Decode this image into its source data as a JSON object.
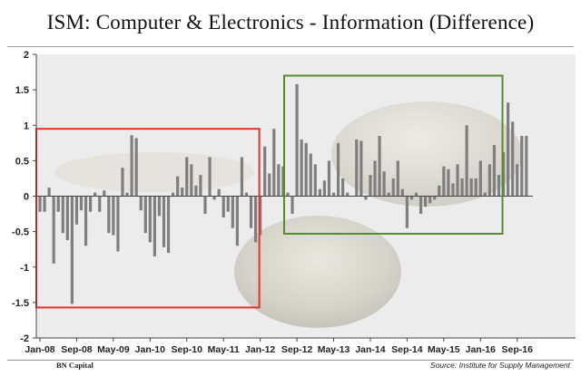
{
  "header": {
    "title": "ISM: Computer & Electronics - Information (Difference)"
  },
  "footer": {
    "left": "BN Capital",
    "right": "Source: Institute for Supply Management"
  },
  "chart_data": {
    "type": "bar",
    "title": "ISM: Computer & Electronics - Information (Difference)",
    "xlabel": "",
    "ylabel": "",
    "ylim": [
      -2,
      2
    ],
    "yticks": [
      2,
      1.5,
      1,
      0.5,
      0,
      -0.5,
      -1,
      -1.5,
      -2
    ],
    "xtick_labels": [
      "Jan-08",
      "Sep-08",
      "May-09",
      "Jan-10",
      "Sep-10",
      "May-11",
      "Jan-12",
      "Sep-12",
      "May-13",
      "Jan-14",
      "Sep-14",
      "May-15",
      "Jan-16",
      "Sep-16"
    ],
    "bar_color": "#7f7f7f",
    "grid": false,
    "start": "Jan-08",
    "values": [
      -0.22,
      -0.22,
      0.12,
      -0.95,
      -0.22,
      -0.52,
      -0.62,
      -1.52,
      -0.4,
      -0.2,
      -0.7,
      -0.22,
      0.05,
      -0.22,
      0.08,
      -0.52,
      -0.55,
      -0.78,
      0.4,
      0.05,
      0.86,
      0.82,
      -0.2,
      -0.52,
      -0.65,
      -0.85,
      -0.28,
      -0.72,
      -0.8,
      0.05,
      0.28,
      0.12,
      0.55,
      0.45,
      0.15,
      0.3,
      -0.25,
      0.55,
      -0.05,
      0.1,
      -0.3,
      -0.22,
      -0.45,
      -0.7,
      0.55,
      0.05,
      -0.45,
      -0.65,
      -0.55,
      0.7,
      0.32,
      0.95,
      0.45,
      0.42,
      0.05,
      -0.25,
      1.58,
      0.8,
      0.75,
      0.6,
      0.45,
      0.1,
      0.22,
      0.5,
      0.05,
      0.75,
      0.25,
      0.05,
      0.0,
      0.8,
      0.78,
      -0.05,
      0.3,
      0.5,
      0.85,
      0.35,
      0.05,
      0.25,
      0.5,
      0.1,
      -0.45,
      -0.05,
      0.05,
      -0.25,
      -0.15,
      -0.1,
      -0.05,
      0.15,
      0.42,
      0.38,
      0.18,
      0.45,
      0.25,
      1.0,
      0.25,
      0.25,
      0.5,
      0.05,
      0.45,
      0.72,
      0.3,
      0.62,
      1.32,
      1.05,
      0.45,
      0.85,
      0.85
    ],
    "annotations": [
      {
        "shape": "rectangle",
        "color": "#e8302a",
        "x_start": "Jan-08",
        "x_end": "Dec-11",
        "y_top": 0.95,
        "y_bottom": -1.57
      },
      {
        "shape": "rectangle",
        "color": "#5a8a2f",
        "x_start": "Jul-12",
        "x_end": "May-16",
        "y_top": 1.7,
        "y_bottom": -0.53
      }
    ]
  }
}
